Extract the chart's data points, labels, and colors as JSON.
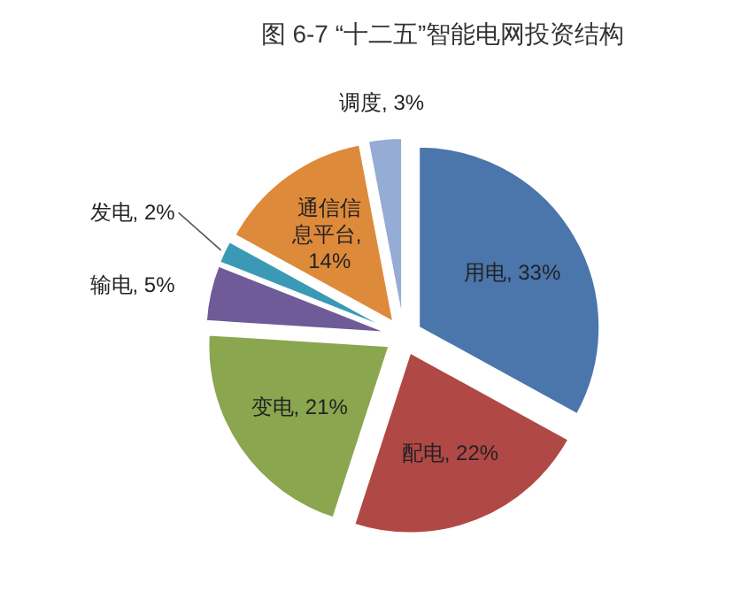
{
  "chart_data": {
    "type": "pie",
    "title": "图 6-7 “十二五”智能电网投资结构",
    "value_labels": [
      ", 33%",
      ", 22%",
      ", 21%",
      ", 5%",
      ", 2%",
      ", 14%",
      ", 3%"
    ],
    "categories": [
      "用电",
      "配电",
      "变电",
      "输电",
      "发电",
      "通信信息平台",
      "调度"
    ],
    "values": [
      33,
      22,
      21,
      5,
      2,
      14,
      3
    ],
    "colors": [
      "#4a76ab",
      "#b04845",
      "#8aa64e",
      "#6f5b97",
      "#3a9ab5",
      "#de8a3b",
      "#95acd4"
    ]
  }
}
